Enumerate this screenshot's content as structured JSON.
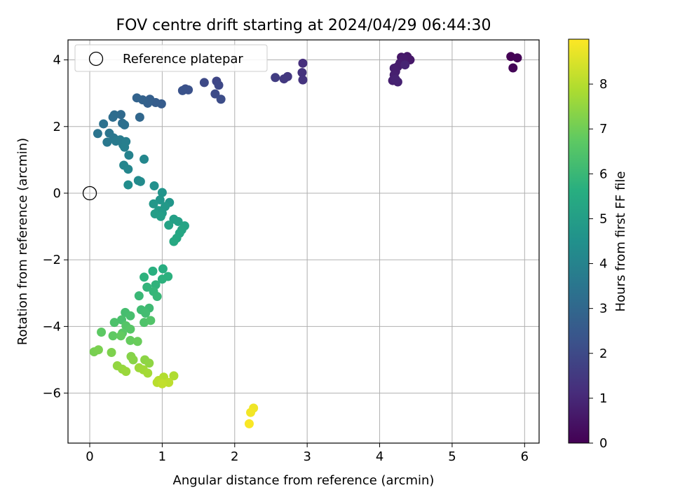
{
  "chart_data": {
    "type": "scatter",
    "title": "FOV centre drift starting at 2024/04/29 06:44:30",
    "xlabel": "Angular distance from reference (arcmin)",
    "ylabel": "Rotation from reference (arcmin)",
    "xlim": [
      -0.3,
      6.2
    ],
    "ylim": [
      -7.5,
      4.6
    ],
    "xticks": [
      0,
      1,
      2,
      3,
      4,
      5,
      6
    ],
    "xtick_labels": [
      "0",
      "1",
      "2",
      "3",
      "4",
      "5",
      "6"
    ],
    "yticks": [
      -6,
      -4,
      -2,
      0,
      2,
      4
    ],
    "ytick_labels": [
      "−6",
      "−4",
      "−2",
      "0",
      "2",
      "4"
    ],
    "grid": true,
    "legend": {
      "location": "top-left",
      "entries": [
        "Reference platepar"
      ]
    },
    "reference_point": {
      "x": 0,
      "y": 0,
      "label": "Reference platepar"
    },
    "colorbar": {
      "label": "Hours from first FF file",
      "range": [
        0,
        9.0
      ],
      "ticks": [
        0,
        1,
        2,
        3,
        4,
        5,
        6,
        7,
        8
      ],
      "tick_labels": [
        "0",
        "1",
        "2",
        "3",
        "4",
        "5",
        "6",
        "7",
        "8"
      ],
      "colormap": "viridis"
    },
    "points": [
      {
        "x": 5.81,
        "y": 4.1,
        "t": 0.0
      },
      {
        "x": 5.9,
        "y": 4.06,
        "t": 0.05
      },
      {
        "x": 5.84,
        "y": 3.76,
        "t": 0.1
      },
      {
        "x": 4.3,
        "y": 4.08,
        "t": 0.5
      },
      {
        "x": 4.38,
        "y": 4.1,
        "t": 0.55
      },
      {
        "x": 4.42,
        "y": 4.0,
        "t": 0.6
      },
      {
        "x": 4.35,
        "y": 3.9,
        "t": 0.62
      },
      {
        "x": 4.33,
        "y": 4.05,
        "t": 0.65
      },
      {
        "x": 4.28,
        "y": 3.9,
        "t": 0.68
      },
      {
        "x": 4.25,
        "y": 3.8,
        "t": 0.7
      },
      {
        "x": 4.2,
        "y": 3.75,
        "t": 0.72
      },
      {
        "x": 4.22,
        "y": 3.65,
        "t": 0.75
      },
      {
        "x": 4.2,
        "y": 3.55,
        "t": 0.78
      },
      {
        "x": 4.18,
        "y": 3.38,
        "t": 0.8
      },
      {
        "x": 4.25,
        "y": 3.34,
        "t": 0.83
      },
      {
        "x": 4.22,
        "y": 3.42,
        "t": 0.86
      },
      {
        "x": 4.35,
        "y": 3.85,
        "t": 0.9
      },
      {
        "x": 2.94,
        "y": 3.9,
        "t": 1.2
      },
      {
        "x": 2.93,
        "y": 3.62,
        "t": 1.3
      },
      {
        "x": 2.94,
        "y": 3.4,
        "t": 1.35
      },
      {
        "x": 2.73,
        "y": 3.5,
        "t": 1.45
      },
      {
        "x": 2.68,
        "y": 3.43,
        "t": 1.5
      },
      {
        "x": 2.56,
        "y": 3.47,
        "t": 1.6
      },
      {
        "x": 1.75,
        "y": 3.36,
        "t": 1.9
      },
      {
        "x": 1.78,
        "y": 3.24,
        "t": 1.95
      },
      {
        "x": 1.58,
        "y": 3.32,
        "t": 2.0
      },
      {
        "x": 1.73,
        "y": 2.98,
        "t": 2.05
      },
      {
        "x": 1.81,
        "y": 2.82,
        "t": 2.1
      },
      {
        "x": 1.32,
        "y": 3.13,
        "t": 2.2
      },
      {
        "x": 1.36,
        "y": 3.1,
        "t": 2.25
      },
      {
        "x": 1.28,
        "y": 3.08,
        "t": 2.3
      },
      {
        "x": 0.99,
        "y": 2.68,
        "t": 2.6
      },
      {
        "x": 0.91,
        "y": 2.72,
        "t": 2.65
      },
      {
        "x": 0.83,
        "y": 2.82,
        "t": 2.7
      },
      {
        "x": 0.8,
        "y": 2.7,
        "t": 2.75
      },
      {
        "x": 0.73,
        "y": 2.8,
        "t": 2.8
      },
      {
        "x": 0.65,
        "y": 2.86,
        "t": 2.85
      },
      {
        "x": 0.69,
        "y": 2.28,
        "t": 3.0
      },
      {
        "x": 0.43,
        "y": 2.36,
        "t": 3.1
      },
      {
        "x": 0.34,
        "y": 2.35,
        "t": 3.15
      },
      {
        "x": 0.32,
        "y": 2.28,
        "t": 3.2
      },
      {
        "x": 0.45,
        "y": 2.1,
        "t": 3.25
      },
      {
        "x": 0.48,
        "y": 2.05,
        "t": 3.3
      },
      {
        "x": 0.19,
        "y": 2.08,
        "t": 3.35
      },
      {
        "x": 0.11,
        "y": 1.79,
        "t": 3.45
      },
      {
        "x": 0.27,
        "y": 1.8,
        "t": 3.5
      },
      {
        "x": 0.33,
        "y": 1.66,
        "t": 3.55
      },
      {
        "x": 0.24,
        "y": 1.53,
        "t": 3.6
      },
      {
        "x": 0.36,
        "y": 1.56,
        "t": 3.65
      },
      {
        "x": 0.42,
        "y": 1.6,
        "t": 3.7
      },
      {
        "x": 0.46,
        "y": 1.45,
        "t": 3.75
      },
      {
        "x": 0.5,
        "y": 1.55,
        "t": 3.8
      },
      {
        "x": 0.48,
        "y": 1.38,
        "t": 3.85
      },
      {
        "x": 0.54,
        "y": 1.14,
        "t": 3.95
      },
      {
        "x": 0.47,
        "y": 0.84,
        "t": 4.05
      },
      {
        "x": 0.53,
        "y": 0.72,
        "t": 4.1
      },
      {
        "x": 0.75,
        "y": 1.02,
        "t": 4.15
      },
      {
        "x": 0.67,
        "y": 0.38,
        "t": 4.25
      },
      {
        "x": 0.7,
        "y": 0.35,
        "t": 4.3
      },
      {
        "x": 0.53,
        "y": 0.25,
        "t": 4.35
      },
      {
        "x": 0.89,
        "y": 0.22,
        "t": 4.45
      },
      {
        "x": 1.0,
        "y": 0.02,
        "t": 4.6
      },
      {
        "x": 0.97,
        "y": -0.2,
        "t": 4.65
      },
      {
        "x": 1.1,
        "y": -0.28,
        "t": 4.7
      },
      {
        "x": 0.88,
        "y": -0.32,
        "t": 4.75
      },
      {
        "x": 1.04,
        "y": -0.4,
        "t": 4.8
      },
      {
        "x": 0.95,
        "y": -0.52,
        "t": 4.85
      },
      {
        "x": 1.0,
        "y": -0.6,
        "t": 4.9
      },
      {
        "x": 0.9,
        "y": -0.62,
        "t": 4.95
      },
      {
        "x": 0.98,
        "y": -0.7,
        "t": 5.0
      },
      {
        "x": 1.16,
        "y": -0.78,
        "t": 5.05
      },
      {
        "x": 1.22,
        "y": -0.85,
        "t": 5.1
      },
      {
        "x": 1.09,
        "y": -0.96,
        "t": 5.15
      },
      {
        "x": 1.31,
        "y": -0.98,
        "t": 5.2
      },
      {
        "x": 1.27,
        "y": -1.1,
        "t": 5.25
      },
      {
        "x": 1.24,
        "y": -1.2,
        "t": 5.3
      },
      {
        "x": 1.2,
        "y": -1.35,
        "t": 5.35
      },
      {
        "x": 1.16,
        "y": -1.45,
        "t": 5.4
      },
      {
        "x": 1.01,
        "y": -2.27,
        "t": 5.6
      },
      {
        "x": 0.87,
        "y": -2.34,
        "t": 5.65
      },
      {
        "x": 1.08,
        "y": -2.5,
        "t": 5.7
      },
      {
        "x": 1.0,
        "y": -2.58,
        "t": 5.72
      },
      {
        "x": 0.75,
        "y": -2.52,
        "t": 5.75
      },
      {
        "x": 0.91,
        "y": -2.75,
        "t": 5.8
      },
      {
        "x": 0.79,
        "y": -2.82,
        "t": 5.85
      },
      {
        "x": 0.88,
        "y": -2.95,
        "t": 5.9
      },
      {
        "x": 0.93,
        "y": -3.1,
        "t": 5.95
      },
      {
        "x": 0.68,
        "y": -3.08,
        "t": 6.0
      },
      {
        "x": 0.82,
        "y": -3.45,
        "t": 6.1
      },
      {
        "x": 0.71,
        "y": -3.5,
        "t": 6.15
      },
      {
        "x": 0.77,
        "y": -3.6,
        "t": 6.2
      },
      {
        "x": 0.49,
        "y": -3.58,
        "t": 6.25
      },
      {
        "x": 0.56,
        "y": -3.68,
        "t": 6.3
      },
      {
        "x": 0.44,
        "y": -3.8,
        "t": 6.35
      },
      {
        "x": 0.34,
        "y": -3.88,
        "t": 6.4
      },
      {
        "x": 0.75,
        "y": -3.88,
        "t": 6.45
      },
      {
        "x": 0.84,
        "y": -3.82,
        "t": 6.5
      },
      {
        "x": 0.5,
        "y": -3.98,
        "t": 6.55
      },
      {
        "x": 0.56,
        "y": -4.08,
        "t": 6.6
      },
      {
        "x": 0.45,
        "y": -4.2,
        "t": 6.65
      },
      {
        "x": 0.16,
        "y": -4.17,
        "t": 6.7
      },
      {
        "x": 0.32,
        "y": -4.28,
        "t": 6.75
      },
      {
        "x": 0.43,
        "y": -4.28,
        "t": 6.8
      },
      {
        "x": 0.56,
        "y": -4.42,
        "t": 6.85
      },
      {
        "x": 0.66,
        "y": -4.45,
        "t": 6.9
      },
      {
        "x": 0.06,
        "y": -4.76,
        "t": 7.1
      },
      {
        "x": 0.12,
        "y": -4.7,
        "t": 7.15
      },
      {
        "x": 0.3,
        "y": -4.78,
        "t": 7.2
      },
      {
        "x": 0.57,
        "y": -4.9,
        "t": 7.3
      },
      {
        "x": 0.6,
        "y": -5.0,
        "t": 7.35
      },
      {
        "x": 0.76,
        "y": -5.0,
        "t": 7.4
      },
      {
        "x": 0.82,
        "y": -5.1,
        "t": 7.45
      },
      {
        "x": 0.38,
        "y": -5.18,
        "t": 7.5
      },
      {
        "x": 0.45,
        "y": -5.28,
        "t": 7.55
      },
      {
        "x": 0.5,
        "y": -5.35,
        "t": 7.6
      },
      {
        "x": 0.68,
        "y": -5.24,
        "t": 7.65
      },
      {
        "x": 0.74,
        "y": -5.3,
        "t": 7.7
      },
      {
        "x": 0.8,
        "y": -5.4,
        "t": 7.75
      },
      {
        "x": 1.16,
        "y": -5.48,
        "t": 7.9
      },
      {
        "x": 1.02,
        "y": -5.52,
        "t": 7.95
      },
      {
        "x": 0.95,
        "y": -5.62,
        "t": 8.0
      },
      {
        "x": 0.93,
        "y": -5.68,
        "t": 8.05
      },
      {
        "x": 1.09,
        "y": -5.68,
        "t": 8.1
      },
      {
        "x": 1.0,
        "y": -5.72,
        "t": 8.15
      },
      {
        "x": 2.26,
        "y": -6.45,
        "t": 8.8
      },
      {
        "x": 2.22,
        "y": -6.58,
        "t": 8.85
      },
      {
        "x": 2.2,
        "y": -6.92,
        "t": 8.95
      }
    ]
  }
}
